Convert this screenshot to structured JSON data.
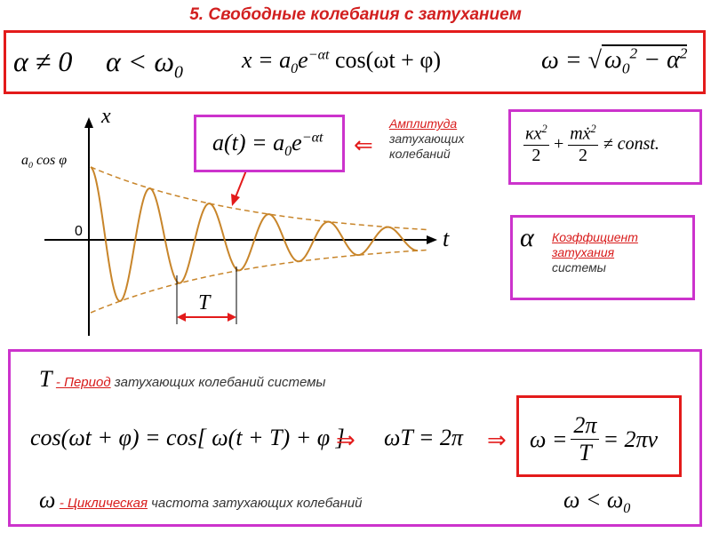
{
  "title": "5. Свободные колебания с затуханием",
  "top_formulas": {
    "cond1": "α ≠ 0",
    "cond2_lhs": "α < ω",
    "cond2_sub": "0",
    "x_eq_lhs": "x = a",
    "x_eq_sub": "0",
    "x_eq_e": "e",
    "x_eq_exp": "−αt",
    "x_eq_cos": "cos(ωt + φ)",
    "omega_lhs": "ω =",
    "omega_rad": "ω",
    "omega_sub": "0",
    "omega_sup": "2",
    "omega_minus": "− α",
    "omega_sup2": "2"
  },
  "graph": {
    "axis_x_label": "x",
    "axis_t_label": "t",
    "zero_label": "0",
    "y0_label_a": "a",
    "y0_label_sub": "0",
    "y0_label_rest": "cos φ",
    "period_label": "T"
  },
  "amplitude_box": {
    "formula_lhs": "a(t) = a",
    "formula_sub": "0",
    "formula_e": "e",
    "formula_exp": "−αt",
    "arrow": "⇐",
    "note_title": "Амплитуда",
    "note_line2": "затухающих",
    "note_line3": "колебаний"
  },
  "energy_box": {
    "k": "κx",
    "k_sup": "2",
    "den1": "2",
    "plus": "+",
    "m": "mẋ",
    "m_sup": "2",
    "den2": "2",
    "tail": "≠ const."
  },
  "coef_box": {
    "symbol": "α",
    "line1": "Коэффициент",
    "line2": "затухания",
    "line3": "системы"
  },
  "bottom": {
    "T_symbol": "T",
    "period_term": "- Период",
    "period_rest": " затухающих колебаний системы",
    "eq1": "cos(ωt + φ) = cos[ ω(t + T) + φ ]",
    "arrow1": "⇒",
    "eq2": "ωT = 2π",
    "arrow2": "⇒",
    "eq3_lhs": "ω =",
    "eq3_num": "2π",
    "eq3_den": "T",
    "eq3_rhs": "= 2πν",
    "omega_symbol": "ω",
    "cyclic_term": "- Циклическая",
    "cyclic_rest": " частота затухающих колебаний",
    "ineq_lhs": "ω < ω",
    "ineq_sub": "0"
  }
}
